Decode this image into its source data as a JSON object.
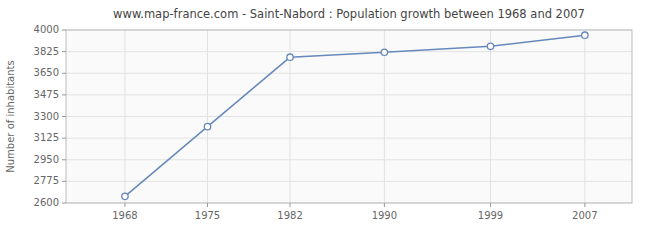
{
  "chart_data": {
    "type": "line",
    "title": "www.map-france.com - Saint-Nabord : Population growth between 1968 and 2007",
    "ylabel": "Number of inhabitants",
    "x": [
      1968,
      1975,
      1982,
      1990,
      1999,
      2007
    ],
    "values": [
      2654,
      3218,
      3780,
      3820,
      3868,
      3958
    ],
    "xlim": [
      1963,
      2011
    ],
    "ylim": [
      2600,
      4000
    ],
    "xticks": [
      1968,
      1975,
      1982,
      1990,
      1999,
      2007
    ],
    "yticks": [
      2600,
      2775,
      2950,
      3125,
      3300,
      3475,
      3650,
      3825,
      4000
    ],
    "grid": true,
    "color": "#6688bb",
    "marker": "circle"
  }
}
